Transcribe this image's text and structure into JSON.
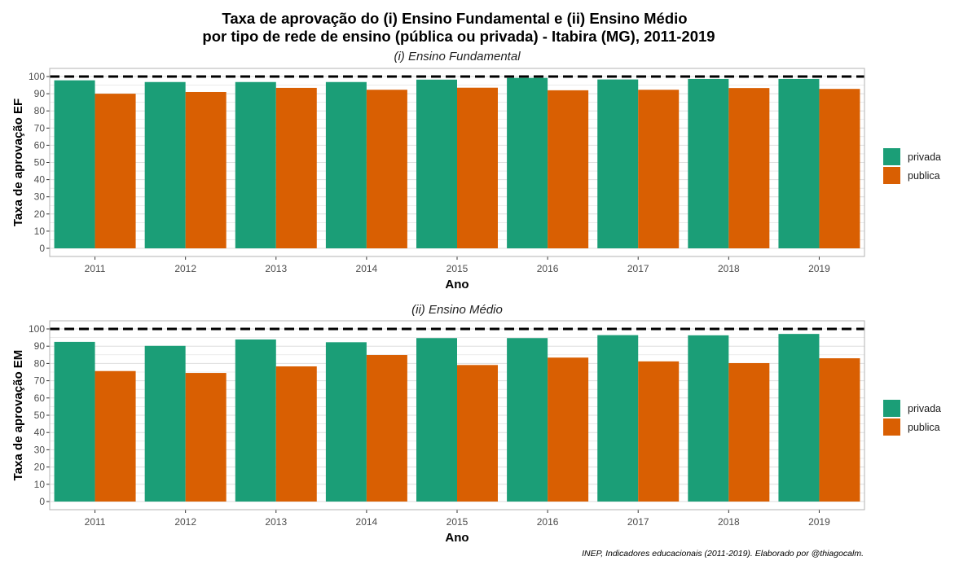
{
  "title_line1": "Taxa de aprovação do (i) Ensino Fundamental e (ii) Ensino Médio",
  "title_line2": "por tipo de rede de ensino (pública ou privada) - Itabira (MG), 2011-2019",
  "caption": "INEP, Indicadores educacionais (2011-2019). Elaborado por @thiagocalm.",
  "colors": {
    "privada": "#1b9e77",
    "publica": "#d95f02",
    "grid": "#dedede",
    "panel_border": "#b3b3b3",
    "reference_line": "#000000"
  },
  "legend": [
    {
      "key": "privada",
      "label": "privada"
    },
    {
      "key": "publica",
      "label": "publica"
    }
  ],
  "chart_data": [
    {
      "type": "bar",
      "subtitle": "(i) Ensino Fundamental",
      "xlabel": "Ano",
      "ylabel": "Taxa de aprovação EF",
      "categories": [
        "2011",
        "2012",
        "2013",
        "2014",
        "2015",
        "2016",
        "2017",
        "2018",
        "2019"
      ],
      "series": [
        {
          "name": "privada",
          "values": [
            97.8,
            96.8,
            96.8,
            96.8,
            98.2,
            99.2,
            98.3,
            98.6,
            98.6
          ]
        },
        {
          "name": "publica",
          "values": [
            90.0,
            91.0,
            93.4,
            92.3,
            93.5,
            92.0,
            92.3,
            93.3,
            92.8
          ]
        }
      ],
      "ylim": [
        0,
        100
      ],
      "yticks": [
        0,
        10,
        20,
        30,
        40,
        50,
        60,
        70,
        80,
        90,
        100
      ],
      "reference_line": 100,
      "grid": true,
      "legend_position": "right"
    },
    {
      "type": "bar",
      "subtitle": "(ii) Ensino Médio",
      "xlabel": "Ano",
      "ylabel": "Taxa de aprovação EM",
      "categories": [
        "2011",
        "2012",
        "2013",
        "2014",
        "2015",
        "2016",
        "2017",
        "2018",
        "2019"
      ],
      "series": [
        {
          "name": "privada",
          "values": [
            92.5,
            90.2,
            93.9,
            92.3,
            94.7,
            94.7,
            96.4,
            96.3,
            97.1
          ]
        },
        {
          "name": "publica",
          "values": [
            75.6,
            74.5,
            78.3,
            84.9,
            79.1,
            83.4,
            81.2,
            80.2,
            83.0
          ]
        }
      ],
      "ylim": [
        0,
        100
      ],
      "yticks": [
        0,
        10,
        20,
        30,
        40,
        50,
        60,
        70,
        80,
        90,
        100
      ],
      "reference_line": 100,
      "grid": true,
      "legend_position": "right"
    }
  ]
}
